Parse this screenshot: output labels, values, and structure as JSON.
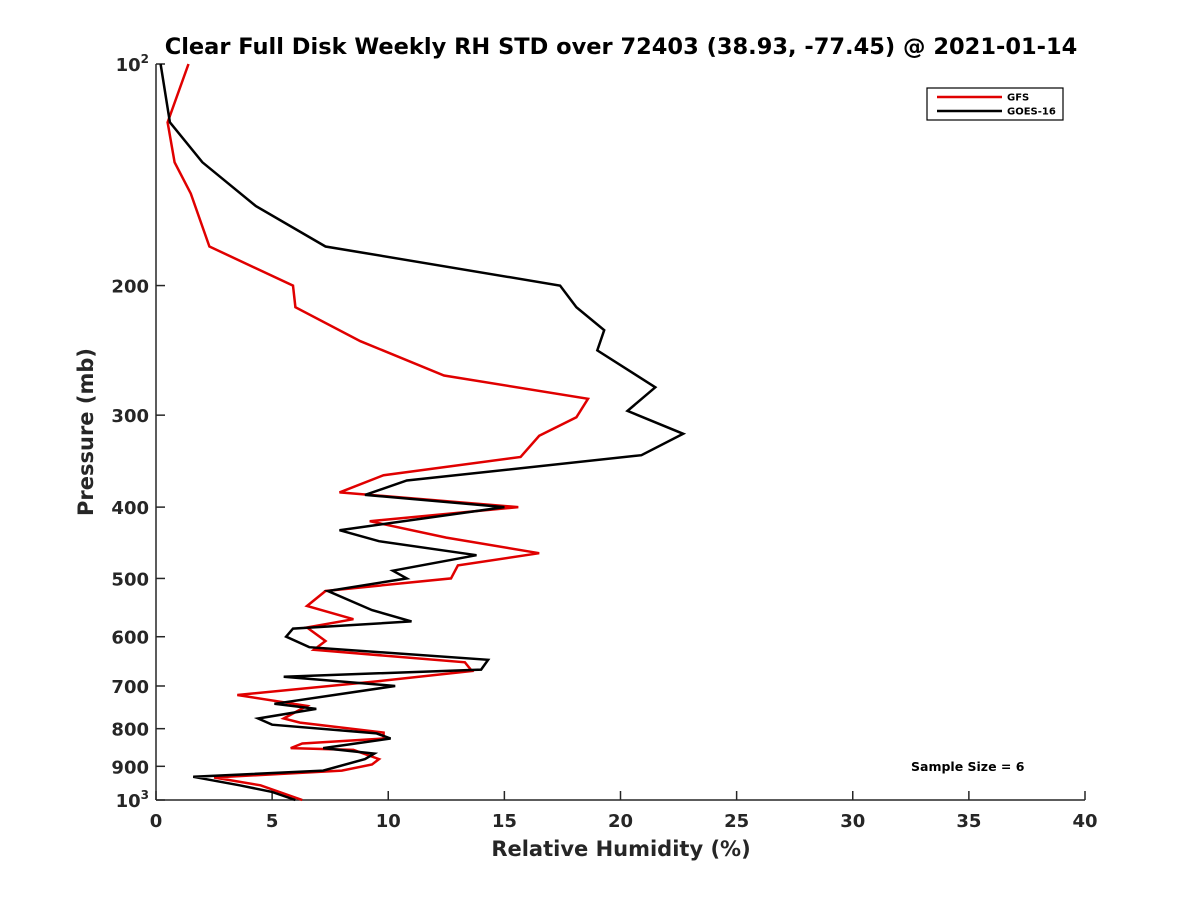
{
  "chart_data": {
    "type": "line",
    "title": "Clear Full Disk Weekly RH STD over 72403 (38.93, -77.45) @ 2021-01-14",
    "xlabel": "Relative Humidity (%)",
    "ylabel": "Pressure (mb)",
    "xlim": [
      0,
      40
    ],
    "ylim": [
      100,
      1000
    ],
    "y_scale": "log",
    "y_reversed": true,
    "grid": false,
    "legend_position": "top-right",
    "x_ticks": [
      0,
      5,
      10,
      15,
      20,
      25,
      30,
      35,
      40
    ],
    "x_tick_labels": [
      "0",
      "5",
      "10",
      "15",
      "20",
      "25",
      "30",
      "35",
      "40"
    ],
    "y_ticks": [
      100,
      200,
      300,
      400,
      500,
      600,
      700,
      800,
      900,
      1000
    ],
    "y_tick_labels": [
      {
        "base": "10",
        "sup": "2"
      },
      {
        "base": "200",
        "sup": ""
      },
      {
        "base": "300",
        "sup": ""
      },
      {
        "base": "400",
        "sup": ""
      },
      {
        "base": "500",
        "sup": ""
      },
      {
        "base": "600",
        "sup": ""
      },
      {
        "base": "700",
        "sup": ""
      },
      {
        "base": "800",
        "sup": ""
      },
      {
        "base": "900",
        "sup": ""
      },
      {
        "base": "10",
        "sup": "3"
      }
    ],
    "annotation": "Sample Size = 6",
    "series": [
      {
        "name": "GFS",
        "color": "#e00000",
        "points": [
          [
            1.4,
            100
          ],
          [
            0.5,
            120
          ],
          [
            0.8,
            136
          ],
          [
            1.5,
            150
          ],
          [
            2.3,
            177
          ],
          [
            5.9,
            200
          ],
          [
            6.0,
            214
          ],
          [
            8.8,
            238
          ],
          [
            12.4,
            265
          ],
          [
            18.6,
            285
          ],
          [
            18.1,
            302
          ],
          [
            16.5,
            320
          ],
          [
            15.7,
            342
          ],
          [
            9.8,
            362
          ],
          [
            7.9,
            382
          ],
          [
            15.6,
            400
          ],
          [
            9.2,
            418
          ],
          [
            12.5,
            440
          ],
          [
            16.5,
            462
          ],
          [
            13.0,
            480
          ],
          [
            12.7,
            500
          ],
          [
            7.3,
            520
          ],
          [
            6.5,
            545
          ],
          [
            8.5,
            568
          ],
          [
            6.5,
            583
          ],
          [
            7.3,
            608
          ],
          [
            6.8,
            625
          ],
          [
            13.3,
            650
          ],
          [
            13.6,
            668
          ],
          [
            9.5,
            690
          ],
          [
            3.5,
            720
          ],
          [
            6.5,
            745
          ],
          [
            5.5,
            775
          ],
          [
            6.2,
            785
          ],
          [
            9.8,
            810
          ],
          [
            9.8,
            825
          ],
          [
            6.3,
            838
          ],
          [
            5.8,
            850
          ],
          [
            8.5,
            855
          ],
          [
            9.6,
            880
          ],
          [
            9.3,
            895
          ],
          [
            8.0,
            912
          ],
          [
            2.5,
            932
          ],
          [
            4.5,
            955
          ],
          [
            6.3,
            1000
          ]
        ]
      },
      {
        "name": "GOES-16",
        "color": "#000000",
        "points": [
          [
            0.2,
            100
          ],
          [
            0.6,
            120
          ],
          [
            2.0,
            136
          ],
          [
            4.3,
            156
          ],
          [
            7.3,
            177
          ],
          [
            17.4,
            200
          ],
          [
            18.1,
            214
          ],
          [
            19.3,
            230
          ],
          [
            19.0,
            245
          ],
          [
            21.5,
            275
          ],
          [
            20.3,
            296
          ],
          [
            22.7,
            318
          ],
          [
            20.9,
            340
          ],
          [
            10.8,
            368
          ],
          [
            9.0,
            385
          ],
          [
            15.0,
            400
          ],
          [
            7.9,
            430
          ],
          [
            9.6,
            445
          ],
          [
            13.8,
            465
          ],
          [
            10.2,
            488
          ],
          [
            10.8,
            500
          ],
          [
            7.4,
            520
          ],
          [
            9.3,
            552
          ],
          [
            11.0,
            572
          ],
          [
            5.9,
            585
          ],
          [
            5.6,
            600
          ],
          [
            6.6,
            620
          ],
          [
            14.3,
            645
          ],
          [
            14.0,
            665
          ],
          [
            5.5,
            680
          ],
          [
            10.3,
            700
          ],
          [
            5.1,
            740
          ],
          [
            6.9,
            752
          ],
          [
            4.4,
            775
          ],
          [
            5.0,
            790
          ],
          [
            9.5,
            812
          ],
          [
            10.1,
            825
          ],
          [
            7.2,
            850
          ],
          [
            9.4,
            865
          ],
          [
            9.0,
            880
          ],
          [
            7.2,
            912
          ],
          [
            1.6,
            930
          ],
          [
            3.6,
            955
          ],
          [
            5.0,
            975
          ],
          [
            6.0,
            1000
          ]
        ]
      }
    ]
  }
}
